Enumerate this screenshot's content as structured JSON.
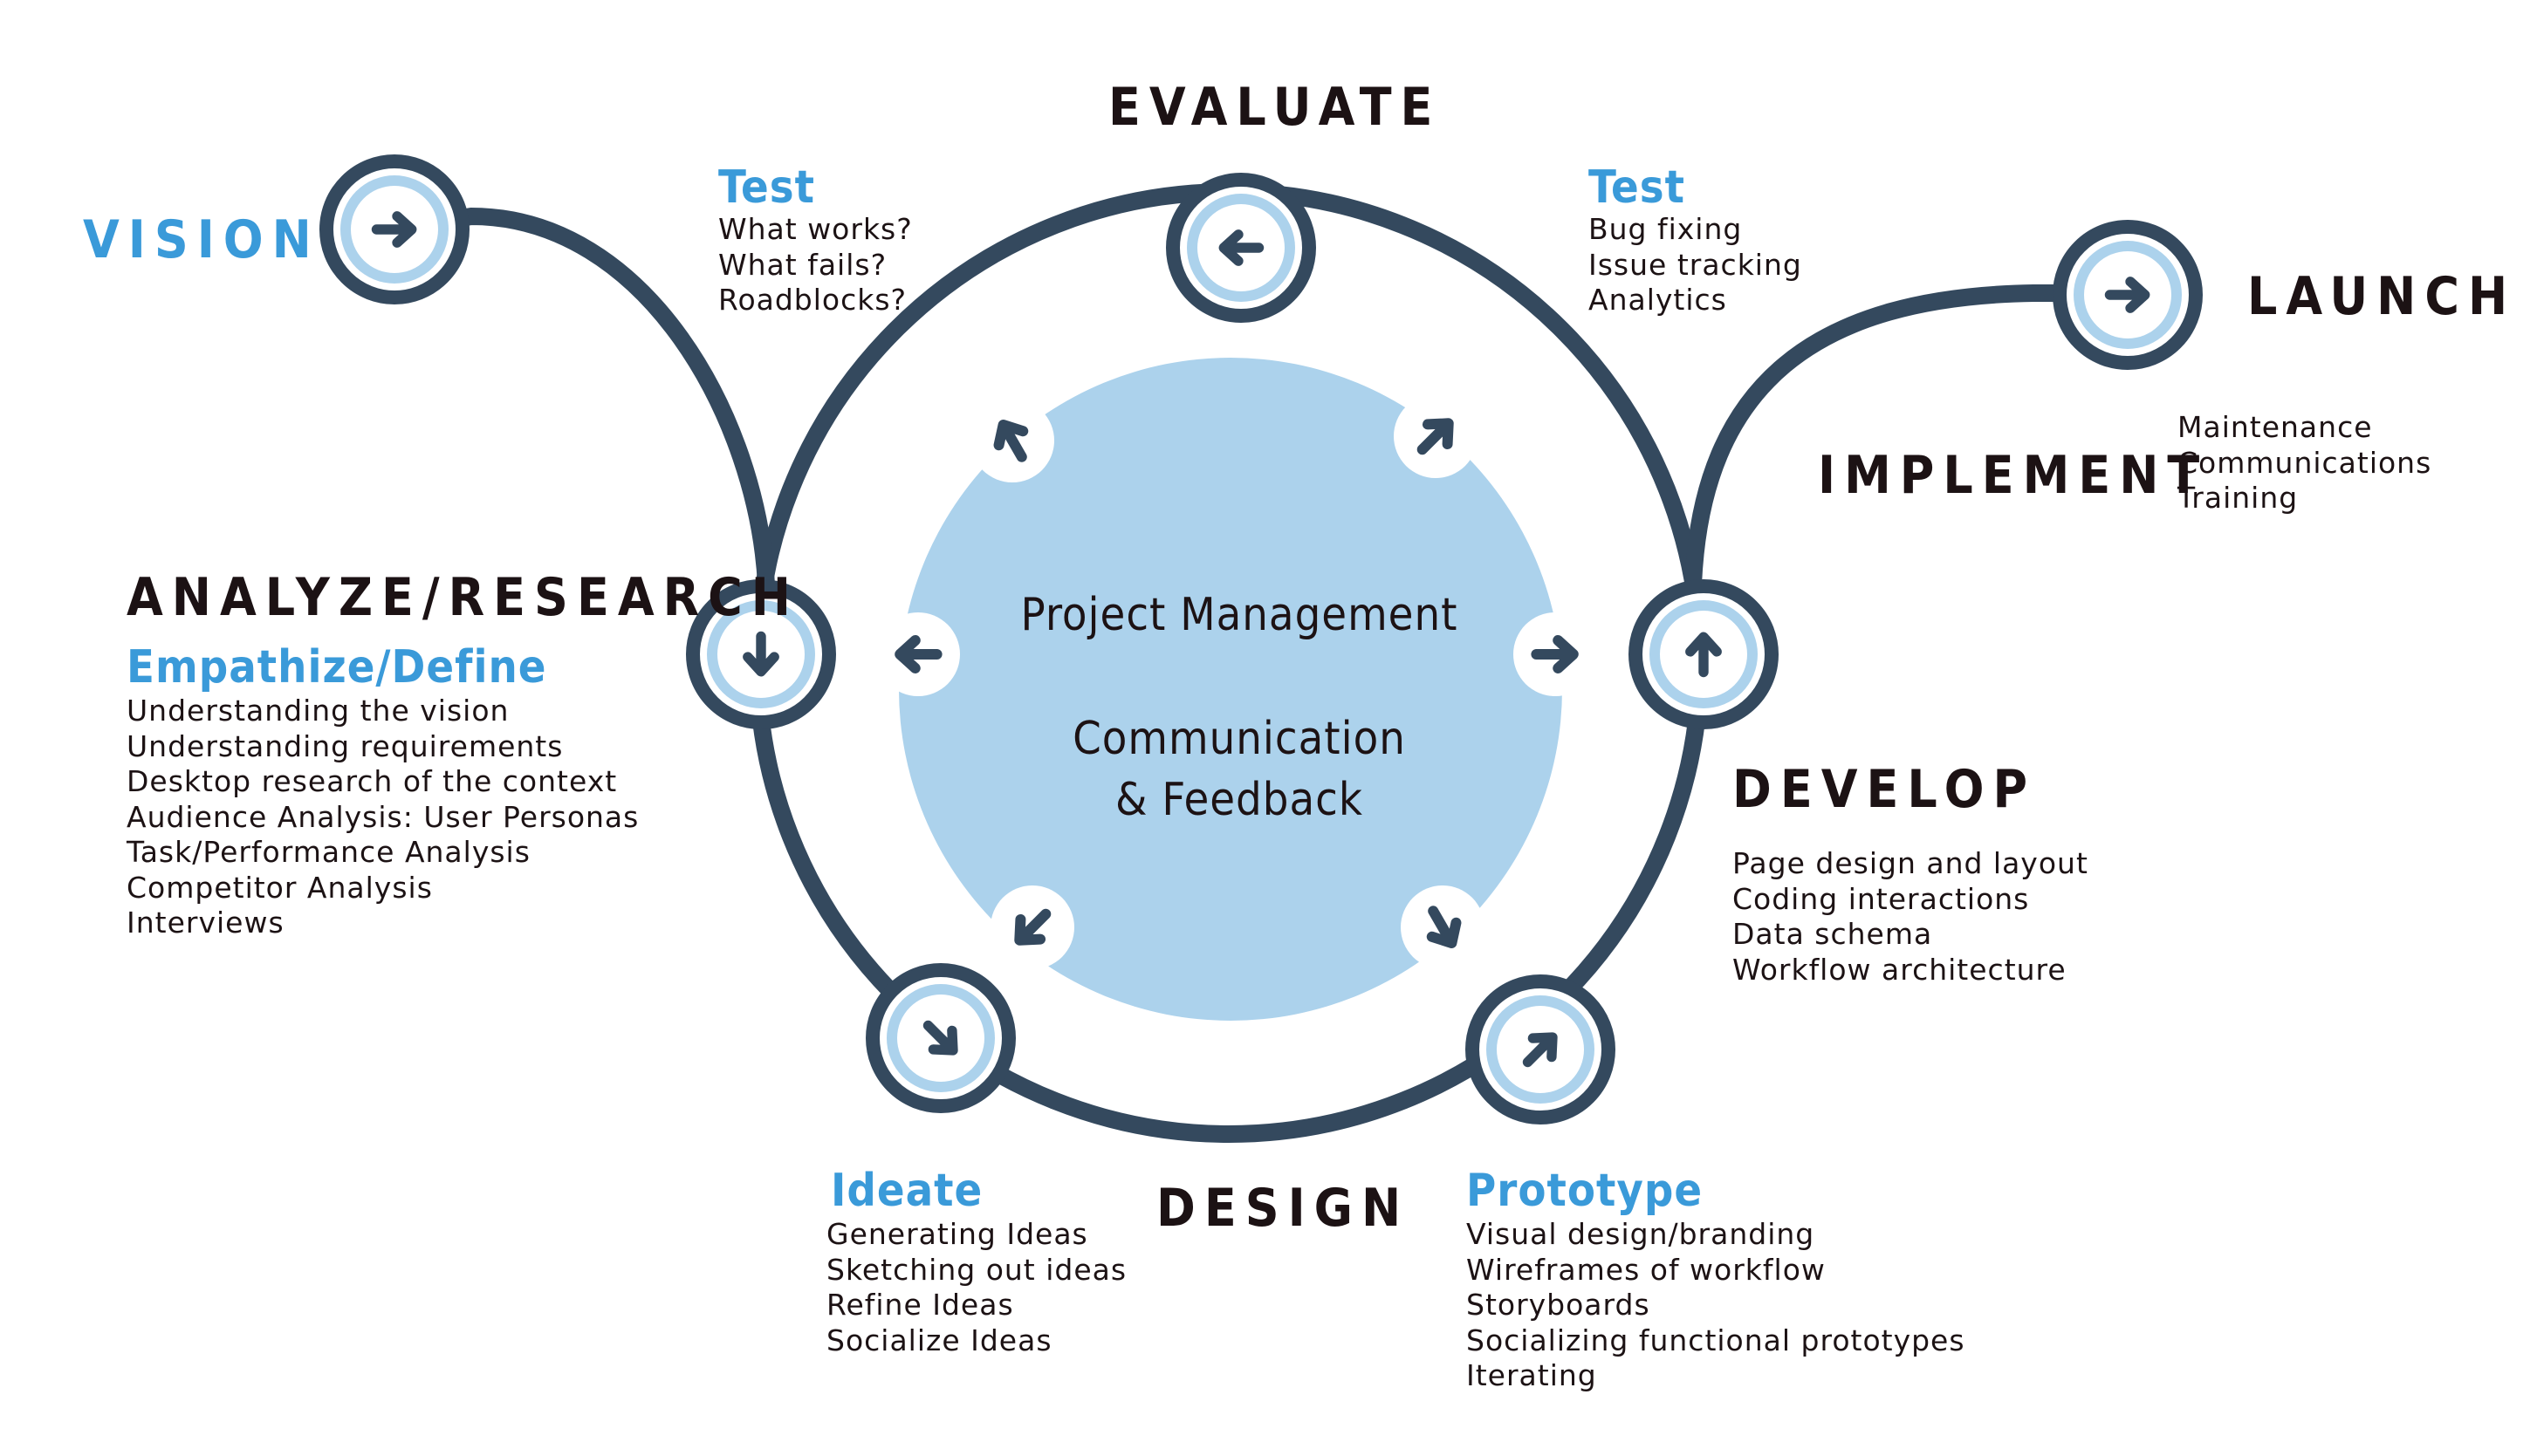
{
  "colors": {
    "ring": "#34495e",
    "center": "#acd2ec",
    "node_inner": "#ffffff",
    "node_accent": "#acd2ec",
    "blue_text": "#3a9ad9",
    "dark_text": "#1c1214"
  },
  "stages": {
    "vision": "VISION",
    "evaluate": "EVALUATE",
    "launch": "LAUNCH",
    "implement": "IMPLEMENT",
    "analyze": "ANALYZE/RESEARCH",
    "develop": "DEVELOP",
    "design": "DESIGN"
  },
  "test_left": {
    "title": "Test",
    "items": [
      "What works?",
      "What fails?",
      "Roadblocks?"
    ]
  },
  "test_right": {
    "title": "Test",
    "items": [
      "Bug fixing",
      "Issue tracking",
      "Analytics"
    ]
  },
  "launch_items": [
    "Maintenance",
    "Communications",
    "Training"
  ],
  "empathize": {
    "title": "Empathize/Define",
    "items": [
      "Understanding the vision",
      "Understanding requirements",
      "Desktop research of the context",
      "Audience Analysis: User Personas",
      "Task/Performance Analysis",
      "Competitor Analysis",
      "Interviews"
    ]
  },
  "develop_items": [
    "Page design and layout",
    "Coding interactions",
    "Data schema",
    "Workflow architecture"
  ],
  "ideate": {
    "title": "Ideate",
    "items": [
      "Generating Ideas",
      "Sketching out ideas",
      "Refine Ideas",
      "Socialize Ideas"
    ]
  },
  "prototype": {
    "title": "Prototype",
    "items": [
      "Visual design/branding",
      "Wireframes of workflow",
      "Storyboards",
      "Socializing functional prototypes",
      "Iterating"
    ]
  },
  "center": {
    "line1": "Project Management",
    "line2": "Communication",
    "line3": "& Feedback"
  },
  "icons": {
    "vision": "arrow-right-icon",
    "evaluate": "arrow-left-icon",
    "launch": "arrow-right-icon",
    "analyze": "arrow-down-icon",
    "develop": "arrow-up-icon",
    "ideate": "arrow-down-right-icon",
    "prototype": "arrow-up-right-icon"
  }
}
